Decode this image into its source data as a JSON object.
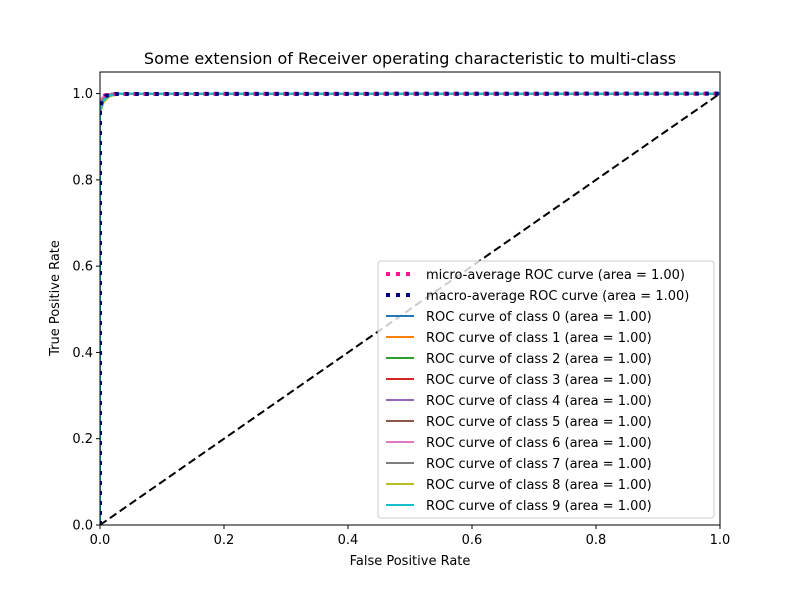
{
  "chart_data": {
    "type": "line",
    "title": "Some extension of Receiver operating characteristic to multi-class",
    "xlabel": "False Positive Rate",
    "ylabel": "True Positive Rate",
    "xlim": [
      0.0,
      1.0
    ],
    "ylim": [
      0.0,
      1.05
    ],
    "xticks": [
      "0.0",
      "0.2",
      "0.4",
      "0.6",
      "0.8",
      "1.0"
    ],
    "yticks": [
      "0.0",
      "0.2",
      "0.4",
      "0.6",
      "0.8",
      "1.0"
    ],
    "grid": false,
    "legend_position": "lower-right",
    "series": [
      {
        "name": "micro-average ROC curve (area = 1.00)",
        "color": "#ff1493",
        "style": "dotted",
        "x": [
          0,
          0,
          0.003,
          0.008,
          0.02,
          1.0
        ],
        "y": [
          0,
          0.975,
          0.99,
          0.996,
          0.999,
          1.0
        ]
      },
      {
        "name": "macro-average ROC curve (area = 1.00)",
        "color": "#000080",
        "style": "dotted",
        "x": [
          0,
          0,
          0.003,
          0.01,
          0.025,
          1.0
        ],
        "y": [
          0,
          0.96,
          0.985,
          0.995,
          0.999,
          1.0
        ]
      },
      {
        "name": "ROC curve of class 0 (area = 1.00)",
        "color": "#1f77b4",
        "style": "solid",
        "x": [
          0,
          0,
          0.004,
          0.01,
          0.02,
          1.0
        ],
        "y": [
          0,
          0.97,
          0.99,
          0.997,
          1.0,
          1.0
        ]
      },
      {
        "name": "ROC curve of class 1 (area = 1.00)",
        "color": "#ff7f0e",
        "style": "solid",
        "x": [
          0,
          0,
          0.005,
          0.012,
          0.03,
          1.0
        ],
        "y": [
          0,
          0.965,
          0.985,
          0.995,
          1.0,
          1.0
        ]
      },
      {
        "name": "ROC curve of class 2 (area = 1.00)",
        "color": "#2ca02c",
        "style": "solid",
        "x": [
          0,
          0,
          0.004,
          0.012,
          0.025,
          1.0
        ],
        "y": [
          0,
          0.96,
          0.983,
          0.994,
          1.0,
          1.0
        ]
      },
      {
        "name": "ROC curve of class 3 (area = 1.00)",
        "color": "#d62728",
        "style": "solid",
        "x": [
          0,
          0,
          0.003,
          0.01,
          0.02,
          1.0
        ],
        "y": [
          0,
          0.97,
          0.988,
          0.996,
          1.0,
          1.0
        ]
      },
      {
        "name": "ROC curve of class 4 (area = 1.00)",
        "color": "#9467bd",
        "style": "solid",
        "x": [
          0,
          0,
          0.004,
          0.01,
          0.02,
          1.0
        ],
        "y": [
          0,
          0.968,
          0.987,
          0.996,
          1.0,
          1.0
        ]
      },
      {
        "name": "ROC curve of class 5 (area = 1.00)",
        "color": "#8c564b",
        "style": "solid",
        "x": [
          0,
          0,
          0.005,
          0.012,
          0.025,
          1.0
        ],
        "y": [
          0,
          0.962,
          0.984,
          0.995,
          1.0,
          1.0
        ]
      },
      {
        "name": "ROC curve of class 6 (area = 1.00)",
        "color": "#e377c2",
        "style": "solid",
        "x": [
          0,
          0,
          0.003,
          0.01,
          0.02,
          1.0
        ],
        "y": [
          0,
          0.972,
          0.99,
          0.997,
          1.0,
          1.0
        ]
      },
      {
        "name": "ROC curve of class 7 (area = 1.00)",
        "color": "#7f7f7f",
        "style": "solid",
        "x": [
          0,
          0,
          0.004,
          0.011,
          0.022,
          1.0
        ],
        "y": [
          0,
          0.966,
          0.986,
          0.995,
          1.0,
          1.0
        ]
      },
      {
        "name": "ROC curve of class 8 (area = 1.00)",
        "color": "#bcbd22",
        "style": "solid",
        "x": [
          0,
          0,
          0.006,
          0.015,
          0.035,
          1.0
        ],
        "y": [
          0,
          0.955,
          0.98,
          0.993,
          1.0,
          1.0
        ]
      },
      {
        "name": "ROC curve of class 9 (area = 1.00)",
        "color": "#17becf",
        "style": "solid",
        "x": [
          0,
          0,
          0.005,
          0.013,
          0.03,
          1.0
        ],
        "y": [
          0,
          0.958,
          0.982,
          0.994,
          1.0,
          1.0
        ]
      }
    ],
    "reference_line": {
      "color": "#000000",
      "style": "dashed",
      "x": [
        0,
        1
      ],
      "y": [
        0,
        1
      ]
    }
  }
}
